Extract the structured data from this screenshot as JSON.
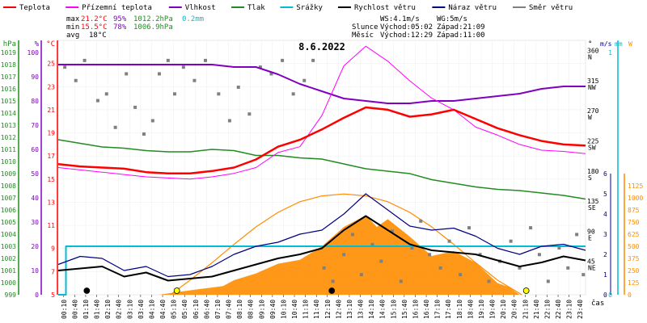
{
  "chart_data": {
    "type": "line",
    "title": "8.6.2022",
    "legend": [
      {
        "name": "Teplota",
        "color": "#ff0000"
      },
      {
        "name": "Přízemní teplota",
        "color": "#ff00ff"
      },
      {
        "name": "Vlhkost",
        "color": "#8000c0"
      },
      {
        "name": "Tlak",
        "color": "#228b22"
      },
      {
        "name": "Srážky",
        "color": "#00bcd4"
      },
      {
        "name": "Rychlost větru",
        "color": "#000000"
      },
      {
        "name": "Náraz větru",
        "color": "#000080"
      },
      {
        "name": "Směr větru",
        "color": "#808080"
      }
    ],
    "stats": {
      "max": {
        "label": "max",
        "temp": "21.2°C",
        "hum": "95%",
        "press": "1012.2hPa",
        "rain": "0.2mm"
      },
      "min": {
        "label": "min",
        "temp": "15.5°C",
        "hum": "78%",
        "press": "1006.9hPa"
      },
      "avg": {
        "label": "avg",
        "temp": "18°C"
      }
    },
    "info": {
      "ws": "WS:4.1m/s",
      "wg": "WG:5m/s",
      "sun_label": "Slunce",
      "sunrise": "Východ:05:02",
      "sunset": "Západ:21:09",
      "moon_label": "Měsíc",
      "moonrise": "Východ:12:29",
      "moonset": "Západ:11:00"
    },
    "axis_units": {
      "press": "hPa",
      "hum": "%",
      "temp": "°C",
      "dir": "°",
      "wind": "m/s",
      "rain": "mm",
      "solar": "W"
    },
    "xlabel": "čas",
    "x_ticks": [
      "00:10",
      "00:40",
      "01:10",
      "01:40",
      "02:10",
      "02:40",
      "03:10",
      "03:40",
      "04:10",
      "04:40",
      "05:10",
      "05:40",
      "06:10",
      "06:40",
      "07:10",
      "07:40",
      "08:10",
      "08:40",
      "09:10",
      "09:40",
      "10:10",
      "10:40",
      "11:10",
      "11:40",
      "12:10",
      "12:40",
      "13:10",
      "13:40",
      "14:10",
      "14:40",
      "15:10",
      "15:40",
      "16:10",
      "16:40",
      "17:10",
      "17:40",
      "18:10",
      "18:40",
      "19:10",
      "19:40",
      "20:10",
      "20:40",
      "21:10",
      "21:40",
      "22:10",
      "22:40",
      "23:10",
      "23:40"
    ],
    "axes": {
      "press": {
        "range": [
          999,
          1020
        ],
        "ticks": [
          "999",
          "1000",
          "1001",
          "1002",
          "1003",
          "1004",
          "1005",
          "1006",
          "1007",
          "1008",
          "1009",
          "1010",
          "1011",
          "1012",
          "1013",
          "1014",
          "1015",
          "1016",
          "1017",
          "1018",
          "1019"
        ]
      },
      "hum": {
        "range": [
          0,
          105
        ],
        "ticks": [
          "0",
          "10",
          "20",
          "30",
          "40",
          "50",
          "60",
          "70",
          "80",
          "90",
          "100"
        ]
      },
      "temp": {
        "range": [
          5,
          27
        ],
        "ticks": [
          "5",
          "7",
          "9",
          "11",
          "13",
          "15",
          "17",
          "19",
          "21",
          "23",
          "25"
        ]
      },
      "dir": {
        "range": [
          0,
          380
        ],
        "ticks": [
          {
            "v": 45,
            "t": [
              "45",
              "NE"
            ]
          },
          {
            "v": 90,
            "t": [
              "90",
              "E"
            ]
          },
          {
            "v": 135,
            "t": [
              "135",
              "SE"
            ]
          },
          {
            "v": 180,
            "t": [
              "180",
              "S"
            ]
          },
          {
            "v": 225,
            "t": [
              "225",
              "SW"
            ]
          },
          {
            "v": 270,
            "t": [
              "270",
              "W"
            ]
          },
          {
            "v": 315,
            "t": [
              "315",
              "NW"
            ]
          },
          {
            "v": 360,
            "t": [
              "360",
              "N"
            ]
          }
        ]
      },
      "wind": {
        "range": [
          0,
          6
        ],
        "ticks": [
          "0",
          "1",
          "2",
          "3",
          "4",
          "5",
          "6"
        ]
      },
      "rain": {
        "range": [
          0,
          1.05
        ],
        "ticks": [
          "0",
          "1"
        ]
      },
      "solar": {
        "range": [
          0,
          1250
        ],
        "ticks": [
          "0",
          "125",
          "250",
          "375",
          "500",
          "625",
          "750",
          "875",
          "1000",
          "1125"
        ]
      }
    },
    "series": {
      "temperature": [
        [
          0,
          16.3
        ],
        [
          1,
          16.1
        ],
        [
          2,
          16
        ],
        [
          3,
          15.9
        ],
        [
          4,
          15.6
        ],
        [
          5,
          15.5
        ],
        [
          6,
          15.5
        ],
        [
          7,
          15.7
        ],
        [
          8,
          16
        ],
        [
          9,
          16.7
        ],
        [
          10,
          17.8
        ],
        [
          11,
          18.4
        ],
        [
          12,
          19.3
        ],
        [
          13,
          20.3
        ],
        [
          14,
          21.2
        ],
        [
          15,
          21
        ],
        [
          16,
          20.4
        ],
        [
          17,
          20.6
        ],
        [
          18,
          21
        ],
        [
          19,
          20.2
        ],
        [
          20,
          19.4
        ],
        [
          21,
          18.8
        ],
        [
          22,
          18.3
        ],
        [
          23,
          18
        ],
        [
          24,
          17.9
        ]
      ],
      "ground_temp": [
        [
          0,
          16
        ],
        [
          1,
          15.8
        ],
        [
          2,
          15.6
        ],
        [
          3,
          15.4
        ],
        [
          4,
          15.2
        ],
        [
          5,
          15.1
        ],
        [
          6,
          15
        ],
        [
          7,
          15.2
        ],
        [
          8,
          15.5
        ],
        [
          9,
          16
        ],
        [
          10,
          17.3
        ],
        [
          11,
          17.8
        ],
        [
          12,
          20.5
        ],
        [
          13,
          24.8
        ],
        [
          14,
          26.5
        ],
        [
          15,
          25.2
        ],
        [
          16,
          23.5
        ],
        [
          17,
          22
        ],
        [
          18,
          21
        ],
        [
          19,
          19.5
        ],
        [
          20,
          18.8
        ],
        [
          21,
          18
        ],
        [
          22,
          17.5
        ],
        [
          23,
          17.4
        ],
        [
          24,
          17.2
        ]
      ],
      "humidity": [
        [
          0,
          95
        ],
        [
          3,
          95
        ],
        [
          4,
          95
        ],
        [
          5,
          95
        ],
        [
          6,
          95
        ],
        [
          7,
          95
        ],
        [
          8,
          94
        ],
        [
          9,
          94
        ],
        [
          10,
          91
        ],
        [
          11,
          87
        ],
        [
          12,
          84
        ],
        [
          13,
          81
        ],
        [
          14,
          80
        ],
        [
          15,
          79
        ],
        [
          16,
          79
        ],
        [
          17,
          80
        ],
        [
          18,
          80
        ],
        [
          19,
          81
        ],
        [
          20,
          82
        ],
        [
          21,
          83
        ],
        [
          22,
          85
        ],
        [
          23,
          86
        ],
        [
          24,
          86
        ]
      ],
      "pressure": [
        [
          0,
          1011.8
        ],
        [
          1,
          1011.5
        ],
        [
          2,
          1011.2
        ],
        [
          3,
          1011.1
        ],
        [
          4,
          1010.9
        ],
        [
          5,
          1010.8
        ],
        [
          6,
          1010.8
        ],
        [
          7,
          1011
        ],
        [
          8,
          1010.9
        ],
        [
          9,
          1010.5
        ],
        [
          10,
          1010.5
        ],
        [
          11,
          1010.3
        ],
        [
          12,
          1010.2
        ],
        [
          13,
          1009.8
        ],
        [
          14,
          1009.4
        ],
        [
          15,
          1009.2
        ],
        [
          16,
          1009
        ],
        [
          17,
          1008.5
        ],
        [
          18,
          1008.2
        ],
        [
          19,
          1007.9
        ],
        [
          20,
          1007.7
        ],
        [
          21,
          1007.6
        ],
        [
          22,
          1007.4
        ],
        [
          23,
          1007.2
        ],
        [
          24,
          1006.9
        ]
      ],
      "rain": [
        [
          0,
          0
        ],
        [
          0.35,
          0
        ],
        [
          0.35,
          0.2
        ],
        [
          24,
          0.2
        ]
      ],
      "wind_speed": [
        [
          0,
          1.2
        ],
        [
          1,
          1.3
        ],
        [
          2,
          1.4
        ],
        [
          3,
          0.9
        ],
        [
          4,
          1.1
        ],
        [
          5,
          0.7
        ],
        [
          6,
          0.8
        ],
        [
          7,
          0.9
        ],
        [
          8,
          1.2
        ],
        [
          9,
          1.5
        ],
        [
          10,
          1.8
        ],
        [
          11,
          2
        ],
        [
          12,
          2.3
        ],
        [
          13,
          3.2
        ],
        [
          14,
          3.9
        ],
        [
          15,
          3.2
        ],
        [
          16,
          2.5
        ],
        [
          17,
          2.2
        ],
        [
          18,
          2.1
        ],
        [
          19,
          2
        ],
        [
          20,
          1.7
        ],
        [
          21,
          1.4
        ],
        [
          22,
          1.6
        ],
        [
          23,
          1.9
        ],
        [
          24,
          1.7
        ]
      ],
      "wind_gust": [
        [
          0,
          1.5
        ],
        [
          1,
          1.9
        ],
        [
          2,
          1.8
        ],
        [
          3,
          1.2
        ],
        [
          4,
          1.4
        ],
        [
          5,
          0.9
        ],
        [
          6,
          1
        ],
        [
          7,
          1.4
        ],
        [
          8,
          2
        ],
        [
          9,
          2.4
        ],
        [
          10,
          2.6
        ],
        [
          11,
          3
        ],
        [
          12,
          3.2
        ],
        [
          13,
          4
        ],
        [
          14,
          5
        ],
        [
          15,
          4.2
        ],
        [
          16,
          3.4
        ],
        [
          17,
          3.2
        ],
        [
          18,
          3.3
        ],
        [
          19,
          2.9
        ],
        [
          20,
          2.3
        ],
        [
          21,
          2
        ],
        [
          22,
          2.4
        ],
        [
          23,
          2.5
        ],
        [
          24,
          2.2
        ]
      ],
      "solar": [
        [
          0,
          0
        ],
        [
          4.6,
          0
        ],
        [
          5.5,
          30
        ],
        [
          6.5,
          60
        ],
        [
          7.5,
          90
        ],
        [
          8,
          150
        ],
        [
          9,
          220
        ],
        [
          10,
          320
        ],
        [
          11,
          360
        ],
        [
          12,
          500
        ],
        [
          13,
          700
        ],
        [
          14,
          820
        ],
        [
          14.5,
          700
        ],
        [
          15,
          780
        ],
        [
          16,
          600
        ],
        [
          17,
          400
        ],
        [
          18,
          450
        ],
        [
          19,
          330
        ],
        [
          20,
          120
        ],
        [
          20.5,
          80
        ],
        [
          21,
          0
        ],
        [
          24,
          0
        ]
      ],
      "solar_theoretical": [
        [
          5.1,
          0
        ],
        [
          6,
          150
        ],
        [
          7,
          330
        ],
        [
          8,
          520
        ],
        [
          9,
          700
        ],
        [
          10,
          850
        ],
        [
          11,
          960
        ],
        [
          12,
          1020
        ],
        [
          13,
          1040
        ],
        [
          14,
          1020
        ],
        [
          15,
          960
        ],
        [
          16,
          850
        ],
        [
          17,
          700
        ],
        [
          18,
          520
        ],
        [
          19,
          330
        ],
        [
          20,
          150
        ],
        [
          21.1,
          0
        ]
      ],
      "wind_direction": [
        [
          0.3,
          340
        ],
        [
          0.8,
          320
        ],
        [
          1.2,
          350
        ],
        [
          1.8,
          290
        ],
        [
          2.2,
          300
        ],
        [
          2.6,
          250
        ],
        [
          3.1,
          330
        ],
        [
          3.5,
          280
        ],
        [
          3.9,
          240
        ],
        [
          4.3,
          260
        ],
        [
          4.6,
          330
        ],
        [
          5,
          350
        ],
        [
          5.3,
          300
        ],
        [
          5.7,
          340
        ],
        [
          6.2,
          320
        ],
        [
          6.7,
          350
        ],
        [
          7.3,
          300
        ],
        [
          7.8,
          260
        ],
        [
          8.2,
          310
        ],
        [
          8.7,
          270
        ],
        [
          9.2,
          340
        ],
        [
          9.7,
          330
        ],
        [
          10.2,
          350
        ],
        [
          10.7,
          300
        ],
        [
          11.2,
          320
        ],
        [
          11.6,
          350
        ],
        [
          12.1,
          40
        ],
        [
          12.5,
          20
        ],
        [
          13,
          60
        ],
        [
          13.4,
          90
        ],
        [
          13.8,
          30
        ],
        [
          14.3,
          75
        ],
        [
          14.7,
          50
        ],
        [
          15.2,
          95
        ],
        [
          15.6,
          20
        ],
        [
          16.1,
          70
        ],
        [
          16.5,
          110
        ],
        [
          16.9,
          60
        ],
        [
          17.4,
          40
        ],
        [
          17.8,
          80
        ],
        [
          18.3,
          30
        ],
        [
          18.7,
          100
        ],
        [
          19.2,
          60
        ],
        [
          19.6,
          20
        ],
        [
          20.1,
          50
        ],
        [
          20.6,
          80
        ],
        [
          21,
          40
        ],
        [
          21.5,
          100
        ],
        [
          21.9,
          60
        ],
        [
          22.3,
          20
        ],
        [
          22.8,
          70
        ],
        [
          23.2,
          40
        ],
        [
          23.6,
          90
        ],
        [
          23.9,
          30
        ]
      ],
      "sun_markers": [
        {
          "t": 5.4,
          "kind": "sunrise"
        },
        {
          "t": 21.3,
          "kind": "sunset"
        }
      ],
      "moon_markers": [
        {
          "t": 1.3,
          "kind": "moonset"
        },
        {
          "t": 12.45,
          "kind": "moonrise"
        }
      ]
    }
  }
}
